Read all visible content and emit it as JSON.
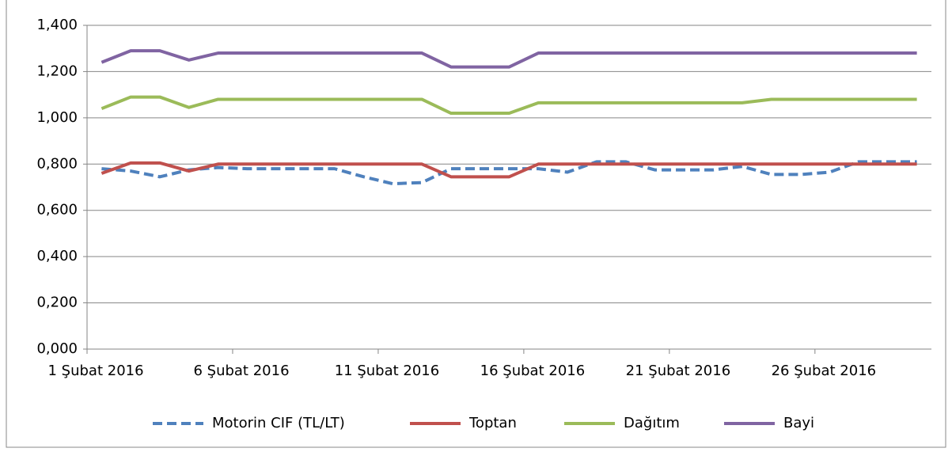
{
  "chart_data": {
    "type": "line",
    "categories": [
      "1 Şubat 2016",
      null,
      null,
      null,
      null,
      "6 Şubat 2016",
      null,
      null,
      null,
      null,
      "11 Şubat 2016",
      null,
      null,
      null,
      null,
      "16 Şubat 2016",
      null,
      null,
      null,
      null,
      "21 Şubat 2016",
      null,
      null,
      null,
      null,
      "26 Şubat 2016",
      null,
      null,
      null
    ],
    "series": [
      {
        "name": "Motorin CIF (TL/LT)",
        "color": "#4f81bd",
        "dashed": true,
        "values": [
          0.78,
          0.77,
          0.745,
          0.775,
          0.785,
          0.78,
          0.78,
          0.78,
          0.78,
          0.745,
          0.715,
          0.72,
          0.78,
          0.78,
          0.78,
          0.78,
          0.765,
          0.81,
          0.81,
          0.775,
          0.775,
          0.775,
          0.79,
          0.755,
          0.755,
          0.765,
          0.81,
          0.81,
          0.81
        ]
      },
      {
        "name": "Toptan",
        "color": "#c0504d",
        "values": [
          0.76,
          0.805,
          0.805,
          0.77,
          0.8,
          0.8,
          0.8,
          0.8,
          0.8,
          0.8,
          0.8,
          0.8,
          0.745,
          0.745,
          0.745,
          0.8,
          0.8,
          0.8,
          0.8,
          0.8,
          0.8,
          0.8,
          0.8,
          0.8,
          0.8,
          0.8,
          0.8,
          0.8,
          0.8
        ]
      },
      {
        "name": "Dağıtım",
        "color": "#9bbb59",
        "values": [
          1.04,
          1.09,
          1.09,
          1.045,
          1.08,
          1.08,
          1.08,
          1.08,
          1.08,
          1.08,
          1.08,
          1.08,
          1.02,
          1.02,
          1.02,
          1.065,
          1.065,
          1.065,
          1.065,
          1.065,
          1.065,
          1.065,
          1.065,
          1.08,
          1.08,
          1.08,
          1.08,
          1.08,
          1.08
        ]
      },
      {
        "name": "Bayi",
        "color": "#8064a2",
        "values": [
          1.24,
          1.29,
          1.29,
          1.25,
          1.28,
          1.28,
          1.28,
          1.28,
          1.28,
          1.28,
          1.28,
          1.28,
          1.22,
          1.22,
          1.22,
          1.28,
          1.28,
          1.28,
          1.28,
          1.28,
          1.28,
          1.28,
          1.28,
          1.28,
          1.28,
          1.28,
          1.28,
          1.28,
          1.28
        ]
      }
    ],
    "ylim": [
      0,
      1.4
    ],
    "yticks": [
      {
        "value": 0,
        "label": "0,000"
      },
      {
        "value": 0.2,
        "label": "0,200"
      },
      {
        "value": 0.4,
        "label": "0,400"
      },
      {
        "value": 0.6,
        "label": "0,600"
      },
      {
        "value": 0.8,
        "label": "0,800"
      },
      {
        "value": 1.0,
        "label": "1,000"
      },
      {
        "value": 1.2,
        "label": "1,200"
      },
      {
        "value": 1.4,
        "label": "1,400"
      }
    ],
    "grid": true,
    "legend": "bottom"
  }
}
